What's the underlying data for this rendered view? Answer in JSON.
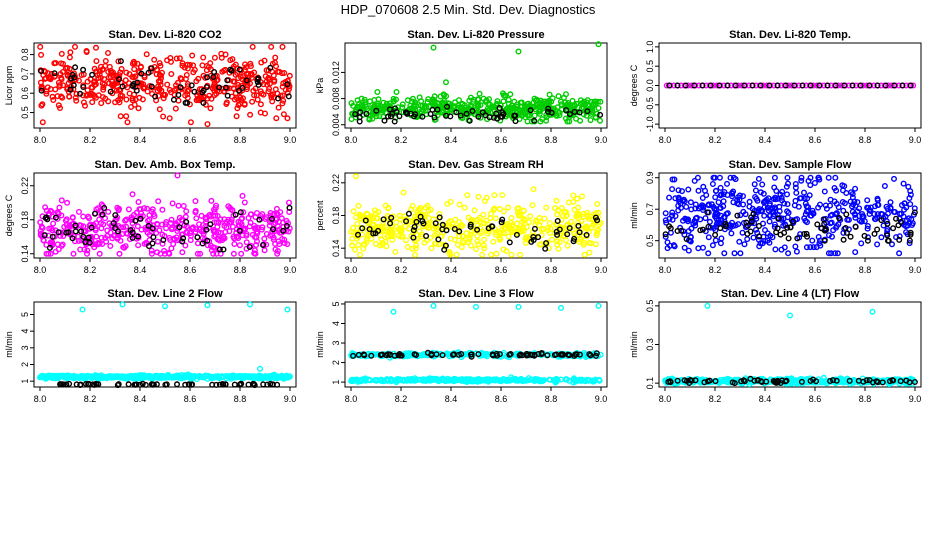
{
  "title": "HDP_070608  2.5 Min. Std. Dev. Diagnostics",
  "colors": {
    "red": "#ff0000",
    "green": "#00cc00",
    "magenta": "#ff00ff",
    "yellow": "#ffff00",
    "blue": "#0000ff",
    "cyan": "#00ffff",
    "black": "#000000"
  },
  "chart_data": [
    {
      "type": "scatter",
      "title": "Stan. Dev. Li-820 CO2",
      "ylabel": "Licor ppm",
      "xlim": [
        8.0,
        9.0
      ],
      "ylim": [
        0.42,
        0.86
      ],
      "xticks": [
        8.0,
        8.2,
        8.4,
        8.6,
        8.8,
        9.0
      ],
      "xtick_labels": [
        "8.0",
        "8.2",
        "8.4",
        "8.6",
        "8.8",
        "9.0"
      ],
      "yticks": [
        0.5,
        0.6,
        0.7,
        0.8
      ],
      "ytick_labels": [
        "0.5",
        "0.6",
        "0.7",
        "0.8"
      ],
      "series": [
        {
          "name": "all",
          "color": "red",
          "count": 480,
          "center": 0.65,
          "spread": 0.07,
          "lo": 0.45,
          "hi": 0.84,
          "outliers": [
            [
              8.14,
              0.84
            ],
            [
              8.35,
              0.45
            ],
            [
              8.67,
              0.44
            ],
            [
              8.97,
              0.84
            ],
            [
              8.99,
              0.47
            ]
          ]
        },
        {
          "name": "highlighted",
          "color": "black",
          "count": 60,
          "center": 0.64,
          "spread": 0.06,
          "lo": 0.55,
          "hi": 0.78
        }
      ]
    },
    {
      "type": "scatter",
      "title": "Stan. Dev. Li-820 Pressure",
      "ylabel": "kPa",
      "xlim": [
        8.0,
        9.0
      ],
      "ylim": [
        0.0035,
        0.0165
      ],
      "xticks": [
        8.0,
        8.2,
        8.4,
        8.6,
        8.8,
        9.0
      ],
      "xtick_labels": [
        "8.0",
        "8.2",
        "8.4",
        "8.6",
        "8.8",
        "9.0"
      ],
      "yticks": [
        0.004,
        0.008,
        0.012
      ],
      "ytick_labels": [
        "0.004",
        "0.008",
        "0.012"
      ],
      "series": [
        {
          "name": "all",
          "color": "green",
          "count": 480,
          "center": 0.0065,
          "spread": 0.0009,
          "lo": 0.0045,
          "hi": 0.009,
          "outliers": [
            [
              8.33,
              0.0158
            ],
            [
              8.38,
              0.0105
            ],
            [
              8.67,
              0.0152
            ],
            [
              8.99,
              0.0163
            ]
          ]
        },
        {
          "name": "highlighted",
          "color": "black",
          "count": 60,
          "center": 0.0054,
          "spread": 0.0006,
          "lo": 0.0045,
          "hi": 0.0075
        }
      ]
    },
    {
      "type": "scatter",
      "title": "Stan. Dev. Li-820 Temp.",
      "ylabel": "degrees C",
      "xlim": [
        8.0,
        9.0
      ],
      "ylim": [
        -1.1,
        1.1
      ],
      "xticks": [
        8.0,
        8.2,
        8.4,
        8.6,
        8.8,
        9.0
      ],
      "xtick_labels": [
        "8.0",
        "8.2",
        "8.4",
        "8.6",
        "8.8",
        "9.0"
      ],
      "yticks": [
        -1.0,
        -0.5,
        0.0,
        0.5,
        1.0
      ],
      "ytick_labels": [
        "-1.0",
        "-0.5",
        "0.0",
        "0.5",
        "1.0"
      ],
      "series": [
        {
          "name": "all",
          "color": "magenta",
          "count": 70,
          "center": 0.0,
          "spread": 0.0,
          "lo": 0.0,
          "hi": 0.0
        },
        {
          "name": "highlighted",
          "color": "black",
          "count": 30,
          "center": 0.0,
          "spread": 0.0,
          "lo": 0.0,
          "hi": 0.0
        }
      ]
    },
    {
      "type": "scatter",
      "title": "Stan. Dev. Amb. Box Temp.",
      "ylabel": "degrees C",
      "xlim": [
        8.0,
        9.0
      ],
      "ylim": [
        0.135,
        0.235
      ],
      "xticks": [
        8.0,
        8.2,
        8.4,
        8.6,
        8.8,
        9.0
      ],
      "xtick_labels": [
        "8.0",
        "8.2",
        "8.4",
        "8.6",
        "8.8",
        "9.0"
      ],
      "yticks": [
        0.14,
        0.18,
        0.22
      ],
      "ytick_labels": [
        "0.14",
        "0.18",
        "0.22"
      ],
      "series": [
        {
          "name": "all",
          "color": "magenta",
          "count": 480,
          "center": 0.168,
          "spread": 0.015,
          "lo": 0.14,
          "hi": 0.205,
          "outliers": [
            [
              8.55,
              0.232
            ],
            [
              8.81,
              0.208
            ],
            [
              8.37,
              0.21
            ]
          ]
        },
        {
          "name": "highlighted",
          "color": "black",
          "count": 60,
          "center": 0.168,
          "spread": 0.013,
          "lo": 0.145,
          "hi": 0.2
        }
      ]
    },
    {
      "type": "scatter",
      "title": "Stan. Dev. Gas Stream RH",
      "ylabel": "percent",
      "xlim": [
        8.0,
        9.0
      ],
      "ylim": [
        0.128,
        0.232
      ],
      "xticks": [
        8.0,
        8.2,
        8.4,
        8.6,
        8.8,
        9.0
      ],
      "xtick_labels": [
        "8.0",
        "8.2",
        "8.4",
        "8.6",
        "8.8",
        "9.0"
      ],
      "yticks": [
        0.14,
        0.18,
        0.22
      ],
      "ytick_labels": [
        "0.14",
        "0.18",
        "0.22"
      ],
      "series": [
        {
          "name": "all",
          "color": "yellow",
          "count": 480,
          "center": 0.163,
          "spread": 0.016,
          "lo": 0.132,
          "hi": 0.205,
          "outliers": [
            [
              8.02,
              0.228
            ],
            [
              8.21,
              0.208
            ],
            [
              8.73,
              0.212
            ]
          ]
        },
        {
          "name": "highlighted",
          "color": "black",
          "count": 60,
          "center": 0.163,
          "spread": 0.014,
          "lo": 0.138,
          "hi": 0.2
        }
      ]
    },
    {
      "type": "scatter",
      "title": "Stan. Dev. Sample Flow",
      "ylabel": "ml/min",
      "xlim": [
        8.0,
        9.0
      ],
      "ylim": [
        0.39,
        0.93
      ],
      "xticks": [
        8.0,
        8.2,
        8.4,
        8.6,
        8.8,
        9.0
      ],
      "xtick_labels": [
        "8.0",
        "8.2",
        "8.4",
        "8.6",
        "8.8",
        "9.0"
      ],
      "yticks": [
        0.5,
        0.7,
        0.9
      ],
      "ytick_labels": [
        "0.5",
        "0.7",
        "0.9"
      ],
      "series": [
        {
          "name": "all",
          "color": "blue",
          "count": 480,
          "center": 0.68,
          "spread": 0.12,
          "lo": 0.42,
          "hi": 0.9
        },
        {
          "name": "highlighted",
          "color": "black",
          "count": 70,
          "center": 0.58,
          "spread": 0.05,
          "lo": 0.5,
          "hi": 0.68
        }
      ]
    },
    {
      "type": "scatter",
      "title": "Stan. Dev. Line 2 Flow",
      "ylabel": "ml/min",
      "xlim": [
        8.0,
        9.0
      ],
      "ylim": [
        0.65,
        5.75
      ],
      "xticks": [
        8.0,
        8.2,
        8.4,
        8.6,
        8.8,
        9.0
      ],
      "xtick_labels": [
        "8.0",
        "8.2",
        "8.4",
        "8.6",
        "8.8",
        "9.0"
      ],
      "yticks": [
        1,
        2,
        3,
        4,
        5
      ],
      "ytick_labels": [
        "1",
        "2",
        "3",
        "4",
        "5"
      ],
      "series": [
        {
          "name": "all",
          "color": "cyan",
          "count": 480,
          "center": 1.25,
          "spread": 0.05,
          "lo": 1.1,
          "hi": 1.4,
          "outliers": [
            [
              8.17,
              5.3
            ],
            [
              8.33,
              5.6
            ],
            [
              8.5,
              5.5
            ],
            [
              8.67,
              5.55
            ],
            [
              8.84,
              5.6
            ],
            [
              8.99,
              5.3
            ],
            [
              8.88,
              1.75
            ]
          ]
        },
        {
          "name": "highlighted",
          "color": "black",
          "count": 60,
          "center": 0.8,
          "spread": 0.02,
          "lo": 0.75,
          "hi": 0.85
        }
      ]
    },
    {
      "type": "scatter",
      "title": "Stan. Dev. Line 3 Flow",
      "ylabel": "ml/min",
      "xlim": [
        8.0,
        9.0
      ],
      "ylim": [
        0.75,
        5.1
      ],
      "xticks": [
        8.0,
        8.2,
        8.4,
        8.6,
        8.8,
        9.0
      ],
      "xtick_labels": [
        "8.0",
        "8.2",
        "8.4",
        "8.6",
        "8.8",
        "9.0"
      ],
      "yticks": [
        1,
        2,
        3,
        4,
        5
      ],
      "ytick_labels": [
        "1",
        "2",
        "3",
        "4",
        "5"
      ],
      "series": [
        {
          "name": "all (low band)",
          "color": "cyan",
          "count": 300,
          "center": 1.1,
          "spread": 0.04,
          "lo": 0.95,
          "hi": 1.25,
          "outliers": [
            [
              8.17,
              4.6
            ],
            [
              8.33,
              4.9
            ],
            [
              8.5,
              4.85
            ],
            [
              8.67,
              4.85
            ],
            [
              8.84,
              4.8
            ],
            [
              8.99,
              4.9
            ]
          ]
        },
        {
          "name": "all (upper band)",
          "color": "cyan",
          "count": 250,
          "center": 2.4,
          "spread": 0.05,
          "lo": 2.25,
          "hi": 2.55
        },
        {
          "name": "highlighted",
          "color": "black",
          "count": 70,
          "center": 2.4,
          "spread": 0.04,
          "lo": 2.3,
          "hi": 2.5
        }
      ]
    },
    {
      "type": "scatter",
      "title": "Stan. Dev. Line 4 (LT) Flow",
      "ylabel": "ml/min",
      "xlim": [
        8.0,
        9.0
      ],
      "ylim": [
        0.08,
        0.52
      ],
      "xticks": [
        8.0,
        8.2,
        8.4,
        8.6,
        8.8,
        9.0
      ],
      "xtick_labels": [
        "8.0",
        "8.2",
        "8.4",
        "8.6",
        "8.8",
        "9.0"
      ],
      "yticks": [
        0.1,
        0.3,
        0.5
      ],
      "ytick_labels": [
        "0.1",
        "0.3",
        "0.5"
      ],
      "series": [
        {
          "name": "all",
          "color": "cyan",
          "count": 480,
          "center": 0.11,
          "spread": 0.006,
          "lo": 0.095,
          "hi": 0.13,
          "outliers": [
            [
              8.17,
              0.5
            ],
            [
              8.5,
              0.45
            ],
            [
              8.83,
              0.47
            ]
          ]
        },
        {
          "name": "highlighted",
          "color": "black",
          "count": 60,
          "center": 0.11,
          "spread": 0.005,
          "lo": 0.1,
          "hi": 0.125
        }
      ]
    }
  ]
}
